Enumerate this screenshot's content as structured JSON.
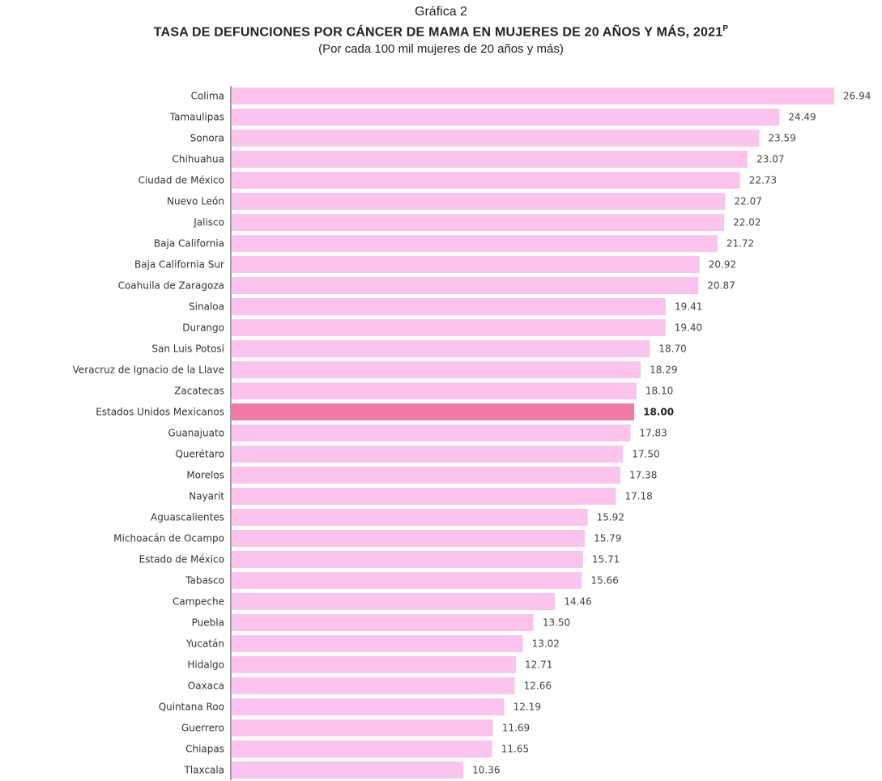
{
  "header": {
    "grafica": "Gráfica 2",
    "title": "TASA DE DEFUNCIONES POR CÁNCER DE MAMA EN MUJERES DE 20 AÑOS Y MÁS, 2021",
    "title_sup": "P",
    "subtitle": "(Por cada 100 mil mujeres de 20 años y más)"
  },
  "chart_data": {
    "type": "bar",
    "orientation": "horizontal",
    "title": "TASA DE DEFUNCIONES POR CÁNCER DE MAMA EN MUJERES DE 20 AÑOS Y MÁS, 2021",
    "subtitle": "(Por cada 100 mil mujeres de 20 años y más)",
    "categories": [
      "Colima",
      "Tamaulipas",
      "Sonora",
      "Chihuahua",
      "Ciudad de México",
      "Nuevo León",
      "Jalisco",
      "Baja California",
      "Baja California Sur",
      "Coahuila de Zaragoza",
      "Sinaloa",
      "Durango",
      "San Luis Potosí",
      "Veracruz de Ignacio de la Llave",
      "Zacatecas",
      "Estados Unidos Mexicanos",
      "Guanajuato",
      "Querétaro",
      "Morelos",
      "Nayarit",
      "Aguascalientes",
      "Michoacán de Ocampo",
      "Estado de México",
      "Tabasco",
      "Campeche",
      "Puebla",
      "Yucatán",
      "Hidalgo",
      "Oaxaca",
      "Quintana Roo",
      "Guerrero",
      "Chiapas",
      "Tlaxcala"
    ],
    "values": [
      26.94,
      24.49,
      23.59,
      23.07,
      22.73,
      22.07,
      22.02,
      21.72,
      20.92,
      20.87,
      19.41,
      19.4,
      18.7,
      18.29,
      18.1,
      18.0,
      17.83,
      17.5,
      17.38,
      17.18,
      15.92,
      15.79,
      15.71,
      15.66,
      14.46,
      13.5,
      13.02,
      12.71,
      12.66,
      12.19,
      11.69,
      11.65,
      10.36
    ],
    "value_labels": [
      "26.94",
      "24.49",
      "23.59",
      "23.07",
      "22.73",
      "22.07",
      "22.02",
      "21.72",
      "20.92",
      "20.87",
      "19.41",
      "19.40",
      "18.70",
      "18.29",
      "18.10",
      "18.00",
      "17.83",
      "17.50",
      "17.38",
      "17.18",
      "15.92",
      "15.79",
      "15.71",
      "15.66",
      "14.46",
      "13.50",
      "13.02",
      "12.71",
      "12.66",
      "12.19",
      "11.69",
      "11.65",
      "10.36"
    ],
    "highlight_category": "Estados Unidos Mexicanos",
    "xlim": [
      0,
      26.94
    ],
    "grid": false,
    "legend": "none",
    "colors": {
      "bar": "#fbc3ee",
      "highlight": "#f07aa8",
      "axis": "#444444"
    }
  }
}
